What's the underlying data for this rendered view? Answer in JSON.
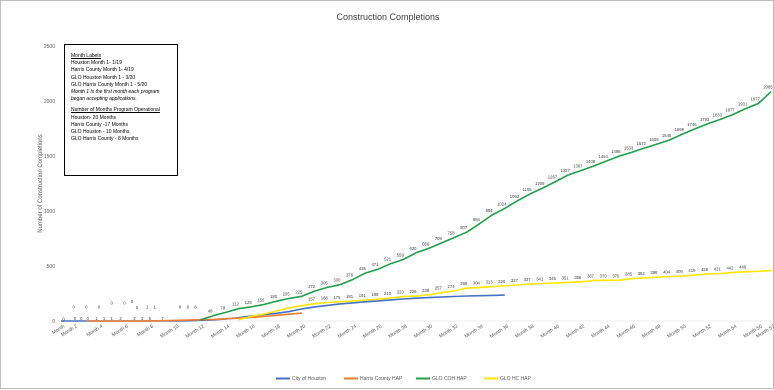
{
  "chart_data": {
    "type": "line",
    "title": "Construction Completions",
    "ylabel": "Number of Construction Completions",
    "xlabel": "",
    "ylim": [
      0,
      2500
    ],
    "yticks": [
      0,
      500,
      1000,
      1500,
      2000,
      2500
    ],
    "xlim": [
      1,
      57
    ],
    "xtick_labels": [
      "Month",
      "Month 2",
      "Month 4",
      "Month 6",
      "Month 8",
      "Month 10",
      "Month 12",
      "Month 14",
      "Month 16",
      "Month 18",
      "Month 20",
      "Month 22",
      "Month 24",
      "Month 26",
      "Month 28",
      "Month 30",
      "Month 32",
      "Month 34",
      "Month 36",
      "Month 38",
      "Month 40",
      "Month 42",
      "Month 44",
      "Month 46",
      "Month 48",
      "Month 50",
      "Month 52",
      "Month 54",
      "Month 56",
      "Month 57"
    ],
    "xtick_positions": [
      1,
      2,
      4,
      6,
      8,
      10,
      12,
      14,
      16,
      18,
      20,
      22,
      24,
      26,
      28,
      30,
      32,
      34,
      36,
      38,
      40,
      42,
      44,
      46,
      48,
      50,
      52,
      54,
      56,
      57
    ],
    "grid": false,
    "legend_position": "bottom",
    "series": [
      {
        "name": "City of Houston",
        "color": "#4472C4",
        "x": [
          1,
          2,
          3,
          4,
          5,
          6,
          7,
          8,
          9,
          10,
          11,
          12,
          13,
          14,
          15,
          16,
          17,
          18,
          19,
          20,
          21,
          22,
          23,
          24,
          25,
          26,
          27,
          28,
          29,
          30,
          31,
          32,
          33,
          34,
          35,
          36
        ],
        "values": [
          0,
          0,
          0,
          0,
          0,
          0,
          0,
          0,
          1,
          1,
          2,
          6,
          10,
          18,
          30,
          45,
          58,
          70,
          85,
          110,
          128,
          142,
          155,
          165,
          175,
          183,
          192,
          200,
          207,
          213,
          218,
          223,
          227,
          230,
          233,
          235
        ],
        "labels": [
          "",
          "",
          "",
          "",
          "",
          "",
          "",
          "",
          "",
          "",
          "",
          "",
          "",
          "",
          "",
          "",
          "",
          "",
          "",
          "",
          "",
          "",
          "",
          "",
          "",
          "",
          "",
          "",
          "",
          "",
          "",
          "",
          "",
          "",
          "",
          ""
        ]
      },
      {
        "name": "Harris County HAP",
        "color": "#ED7D31",
        "x": [
          3,
          4,
          5,
          6,
          7,
          8,
          9,
          10,
          11,
          12,
          13,
          14,
          15,
          16,
          17,
          18,
          19,
          20
        ],
        "values": [
          0,
          0,
          0,
          0,
          0,
          1,
          3,
          5,
          8,
          12,
          15,
          20,
          26,
          33,
          42,
          52,
          62,
          72
        ],
        "labels": [
          "",
          "",
          "",
          "",
          "",
          "",
          "",
          "",
          "",
          "",
          "",
          "",
          "",
          "",
          "",
          "",
          "",
          ""
        ]
      },
      {
        "name": "GLO COH HAP",
        "color": "#21A04A",
        "x": [
          12,
          13,
          14,
          15,
          16,
          17,
          18,
          19,
          20,
          21,
          22,
          23,
          24,
          25,
          26,
          27,
          28,
          29,
          30,
          31,
          32,
          33,
          34,
          35,
          36,
          37,
          38,
          39,
          40,
          41,
          42,
          43,
          44,
          45,
          46,
          47,
          48,
          49,
          50,
          51,
          52,
          53,
          54,
          55,
          56,
          57
        ],
        "values": [
          10,
          48,
          78,
          112,
          128,
          150,
          180,
          205,
          225,
          272,
          305,
          330,
          376,
          435,
          471,
          521,
          559,
          620,
          660,
          709,
          758,
          807,
          884,
          964,
          1024,
          1093,
          1155,
          1209,
          1267,
          1327,
          1367,
          1408,
          1454,
          1498,
          1533,
          1572,
          1608,
          1645,
          1699,
          1746,
          1793,
          1833,
          1877,
          1931,
          1977,
          2085
        ],
        "labels": [
          "",
          "48",
          "78",
          "112",
          "128",
          "150",
          "180",
          "205",
          "225",
          "272",
          "305",
          "330",
          "376",
          "435",
          "471",
          "521",
          "559",
          "620",
          "660",
          "709",
          "758",
          "807",
          "884",
          "964",
          "1024",
          "1093",
          "1155",
          "1209",
          "1267",
          "1327",
          "1367",
          "1408",
          "1454",
          "1498",
          "1533",
          "1572",
          "1608",
          "1645",
          "1699",
          "1746",
          "1793",
          "1833",
          "1877",
          "1931",
          "1977",
          "2085"
        ]
      },
      {
        "name": "GLO HC HAP",
        "color": "#FFE600",
        "x": [
          15,
          16,
          17,
          18,
          19,
          20,
          21,
          22,
          23,
          24,
          25,
          26,
          27,
          28,
          29,
          30,
          31,
          32,
          33,
          34,
          35,
          36,
          37,
          38,
          39,
          40,
          41,
          42,
          43,
          44,
          45,
          46,
          47,
          48,
          49,
          50,
          51,
          52,
          53,
          54,
          55,
          56,
          57
        ],
        "values": [
          12,
          42,
          64,
          92,
          120,
          140,
          157,
          168,
          175,
          181,
          191,
          198,
          210,
          223,
          226,
          238,
          257,
          274,
          299,
          304,
          313,
          320,
          327,
          337,
          341,
          345,
          351,
          356,
          367,
          370,
          370,
          385,
          392,
          398,
          404,
          409,
          419,
          428,
          431,
          442,
          448,
          452,
          458
        ],
        "labels": [
          "",
          "",
          "",
          "",
          "",
          "",
          "157",
          "168",
          "175",
          "181",
          "191",
          "198",
          "210",
          "223",
          "226",
          "238",
          "257",
          "274",
          "299",
          "304",
          "313",
          "320",
          "327",
          "337",
          "341",
          "345",
          "351",
          "356",
          "367",
          "370",
          "370",
          "385",
          "392",
          "398",
          "404",
          "409",
          "419",
          "428",
          "431",
          "442",
          "448",
          "",
          ""
        ]
      }
    ],
    "scattered_labels": [
      {
        "text": "0",
        "x": 1.2,
        "y": 5
      },
      {
        "text": "0",
        "x": 2.0,
        "y": 115
      },
      {
        "text": "0",
        "x": 3.0,
        "y": 115
      },
      {
        "text": "0",
        "x": 4.0,
        "y": 115
      },
      {
        "text": "0",
        "x": 5.0,
        "y": 150
      },
      {
        "text": "0",
        "x": 6.0,
        "y": 150
      },
      {
        "text": "0",
        "x": 6.6,
        "y": 165
      },
      {
        "text": "0",
        "x": 7.0,
        "y": 110
      },
      {
        "text": "1",
        "x": 7.8,
        "y": 115
      },
      {
        "text": "1",
        "x": 8.4,
        "y": 115
      },
      {
        "text": "8",
        "x": 10.4,
        "y": 115
      },
      {
        "text": "8",
        "x": 11.0,
        "y": 115
      },
      {
        "text": "8",
        "x": 11.6,
        "y": 115
      }
    ],
    "bottom_labels": [
      {
        "text": "0",
        "x": 2.1
      },
      {
        "text": "0",
        "x": 2.6
      },
      {
        "text": "0",
        "x": 3.1
      },
      {
        "text": "1",
        "x": 3.8
      },
      {
        "text": "1",
        "x": 4.4
      },
      {
        "text": "1",
        "x": 5.0
      },
      {
        "text": "2",
        "x": 5.7
      },
      {
        "text": "2",
        "x": 6.8
      },
      {
        "text": "3",
        "x": 7.4
      },
      {
        "text": "5",
        "x": 8.0
      },
      {
        "text": "7",
        "x": 9.0
      }
    ]
  },
  "notes": {
    "month_labels_header": "Month Labels",
    "lines1": [
      "Houston Month 1- 1/19",
      "Harris County Month 1- 4/19",
      "GLO Houston Month 1 - 3/20",
      "GLO Harris County Month 1 - 5/20"
    ],
    "italic_note": "Month 1 is the first month each program began accepting applications.",
    "operational_header": "Number of Months Program Operational",
    "lines2": [
      "Houston- 20 Months",
      "Harris County -17 Months",
      "GLO Houston - 10 Months",
      "GLO Harris County - 8 Months"
    ]
  }
}
